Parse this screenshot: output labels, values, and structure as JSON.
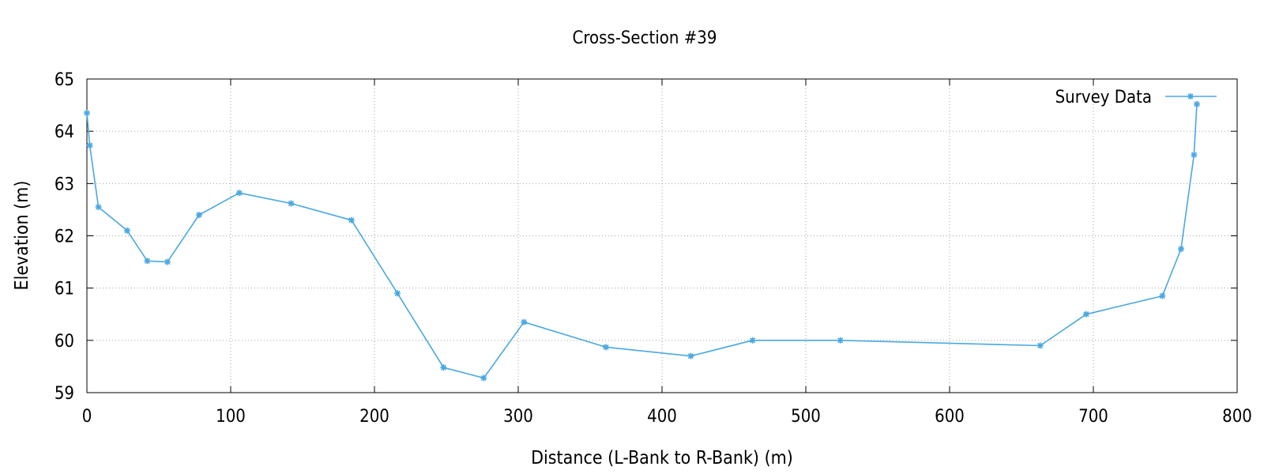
{
  "chart_data": {
    "type": "line",
    "title": "Cross-Section #39",
    "xlabel": "Distance (L-Bank to R-Bank) (m)",
    "ylabel": "Elevation (m)",
    "xlim": [
      0,
      800
    ],
    "ylim": [
      59,
      65
    ],
    "xticks": [
      0,
      100,
      200,
      300,
      400,
      500,
      600,
      700,
      800
    ],
    "yticks": [
      59,
      60,
      61,
      62,
      63,
      64,
      65
    ],
    "grid": true,
    "legend_position": "top-right",
    "series": [
      {
        "name": "Survey Data",
        "color": "#4aa8e0",
        "marker": "star",
        "x": [
          0,
          2,
          8,
          28,
          42,
          56,
          78,
          106,
          142,
          184,
          216,
          248,
          276,
          304,
          361,
          420,
          463,
          524,
          663,
          695,
          748,
          761,
          770,
          772
        ],
        "y": [
          64.35,
          63.73,
          62.55,
          62.1,
          61.52,
          61.5,
          62.4,
          62.82,
          62.62,
          62.3,
          60.9,
          59.48,
          59.28,
          60.35,
          59.87,
          59.7,
          60.0,
          60.0,
          59.9,
          60.5,
          60.85,
          61.75,
          63.55,
          64.52
        ]
      }
    ]
  }
}
